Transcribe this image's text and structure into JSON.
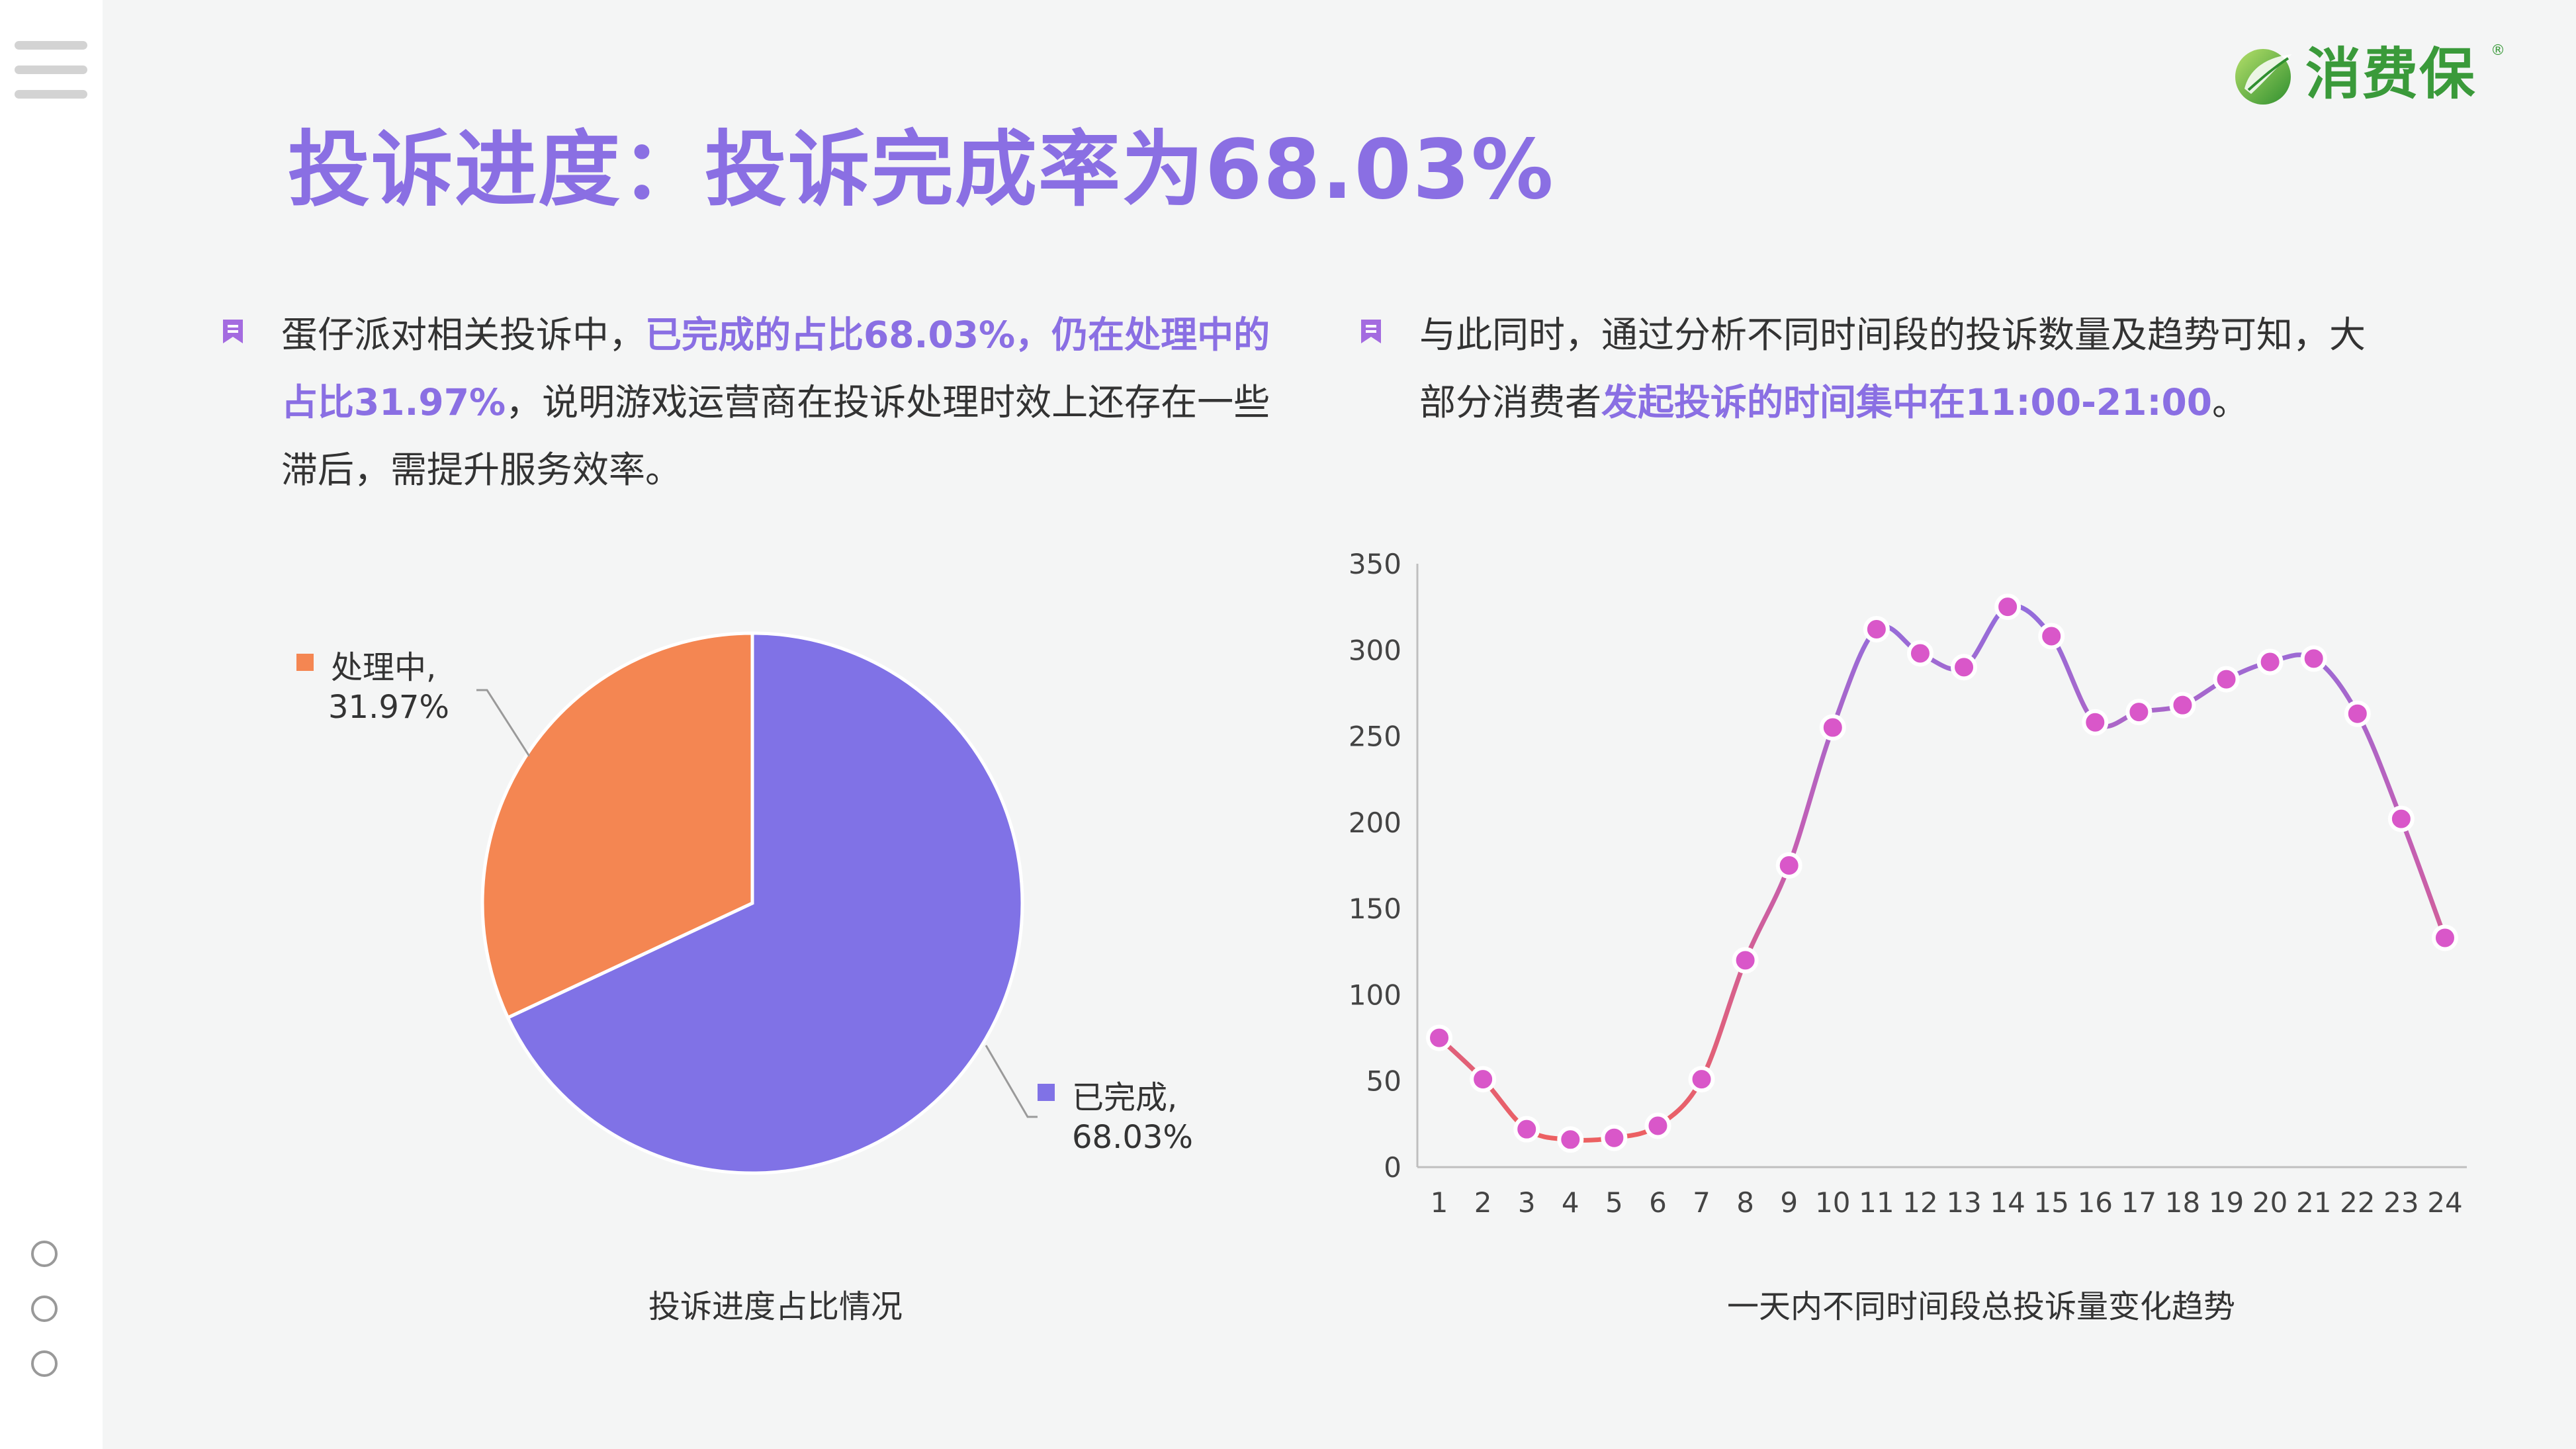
{
  "brand": {
    "name": "消费保",
    "reg_mark": "®"
  },
  "title": "投诉进度：投诉完成率为68.03%",
  "left_para": {
    "line1_a": "蛋仔派对相关投诉中，",
    "line1_hl": "已完成的占比68.03%，仍在处理中的",
    "line2_hl": "占比31.97%",
    "line2_b": "，说明游戏运营商在投诉处理时效上还存在一些",
    "line3": "滞后，需提升服务效率。"
  },
  "right_para": {
    "line1": "与此同时，通过分析不同时间段的投诉数量及趋势可知，大",
    "line2_a": "部分消费者",
    "line2_hl": "发起投诉的时间集中在11:00-21:00",
    "line2_b": "。"
  },
  "chart_data": [
    {
      "type": "pie",
      "title": "投诉进度占比情况",
      "slices": [
        {
          "name": "已完成",
          "value": 68.03,
          "label": "68.03%",
          "color": "#8072e6"
        },
        {
          "name": "处理中",
          "value": 31.97,
          "label": "31.97%",
          "color": "#f48652"
        }
      ]
    },
    {
      "type": "line",
      "title": "一天内不同时间段总投诉量变化趋势",
      "x": [
        "1",
        "2",
        "3",
        "4",
        "5",
        "6",
        "7",
        "8",
        "9",
        "10",
        "11",
        "12",
        "13",
        "14",
        "15",
        "16",
        "17",
        "18",
        "19",
        "20",
        "21",
        "22",
        "23",
        "24"
      ],
      "values": [
        75,
        51,
        22,
        16,
        17,
        24,
        51,
        120,
        175,
        255,
        312,
        298,
        290,
        325,
        308,
        258,
        264,
        268,
        283,
        293,
        295,
        263,
        202,
        133
      ],
      "yticks": [
        0,
        50,
        100,
        150,
        200,
        250,
        300,
        350
      ],
      "ylim": [
        0,
        350
      ],
      "grid": false,
      "line_color_low": "#f0605a",
      "line_color_high": "#8a6fe3",
      "marker_color": "#d957c9"
    }
  ]
}
